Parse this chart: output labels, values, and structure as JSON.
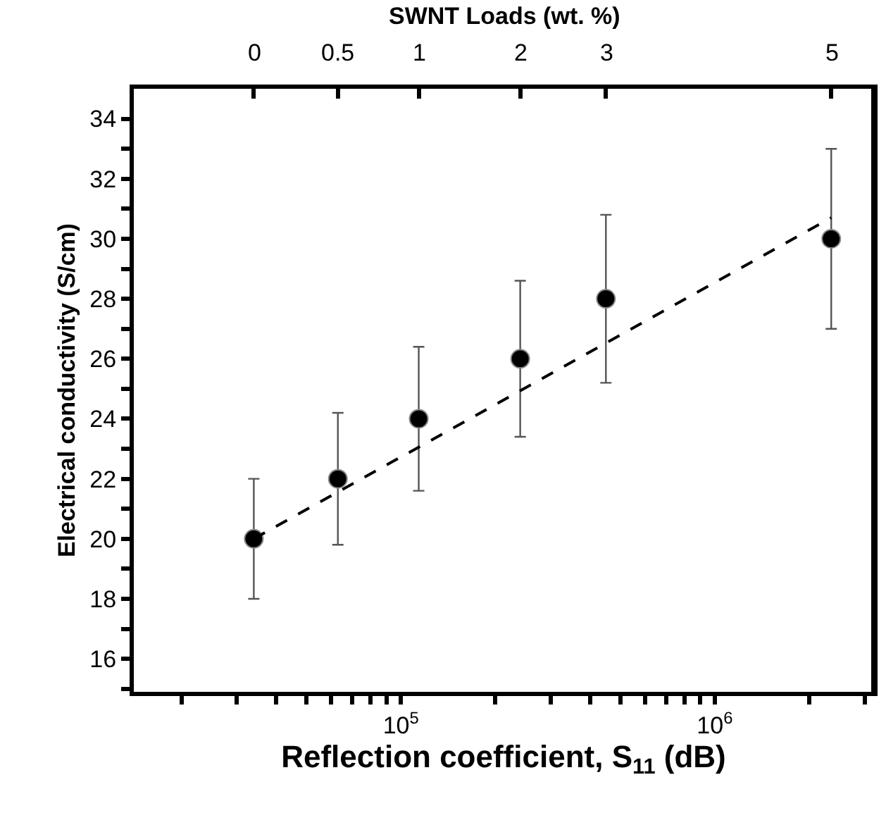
{
  "chart_data": {
    "type": "scatter",
    "xlabel": "Reflection coefficient, S$_{11}$ (dB)",
    "ylabel": "Electrical conductivity (S/cm)",
    "x2label": "SWNT Loads (wt. %)",
    "log": "x",
    "xlim": [
      14100,
      3200000
    ],
    "ylim": [
      14.9,
      35
    ],
    "xticks": [
      {
        "value": 20000,
        "label": null
      },
      {
        "value": 30000,
        "label": null
      },
      {
        "value": 40000,
        "label": null
      },
      {
        "value": 50000,
        "label": null
      },
      {
        "value": 60000,
        "label": null
      },
      {
        "value": 70000,
        "label": null
      },
      {
        "value": 80000,
        "label": null
      },
      {
        "value": 90000,
        "label": null
      },
      {
        "value": 100000,
        "label": "10$^{5}$"
      },
      {
        "value": 200000,
        "label": null
      },
      {
        "value": 300000,
        "label": null
      },
      {
        "value": 400000,
        "label": null
      },
      {
        "value": 500000,
        "label": null
      },
      {
        "value": 600000,
        "label": null
      },
      {
        "value": 700000,
        "label": null
      },
      {
        "value": 800000,
        "label": null
      },
      {
        "value": 900000,
        "label": null
      },
      {
        "value": 1000000,
        "label": "10$^{6}$"
      },
      {
        "value": 2000000,
        "label": null
      },
      {
        "value": 3000000,
        "label": null
      }
    ],
    "annotations": [
      "0",
      "0.5",
      "1",
      "2",
      "3",
      "5"
    ],
    "yticks": [
      {
        "value": 15,
        "label": null
      },
      16,
      {
        "value": 17,
        "label": null
      },
      18,
      {
        "value": 19,
        "label": null
      },
      20,
      {
        "value": 21,
        "label": null
      },
      22,
      {
        "value": 23,
        "label": null
      },
      24,
      {
        "value": 25,
        "label": null
      },
      26,
      {
        "value": 27,
        "label": null
      },
      28,
      {
        "value": 29,
        "label": null
      },
      30,
      {
        "value": 31,
        "label": null
      },
      32,
      {
        "value": 33,
        "label": null
      },
      34
    ],
    "series": [
      {
        "marker": "circle",
        "color": "#000000",
        "x": [
          34000,
          63000,
          114000,
          240000,
          450000,
          2350000
        ],
        "values": [
          20,
          22,
          24,
          26,
          28,
          30
        ],
        "errors": [
          2,
          2.2,
          2.4,
          2.6,
          2.8,
          3
        ]
      },
      {
        "type": "line",
        "marker": "none",
        "line_style": "dashed",
        "color": "#000000",
        "x": [
          34000,
          2350000
        ],
        "values": [
          20.0,
          30.7
        ]
      }
    ]
  }
}
